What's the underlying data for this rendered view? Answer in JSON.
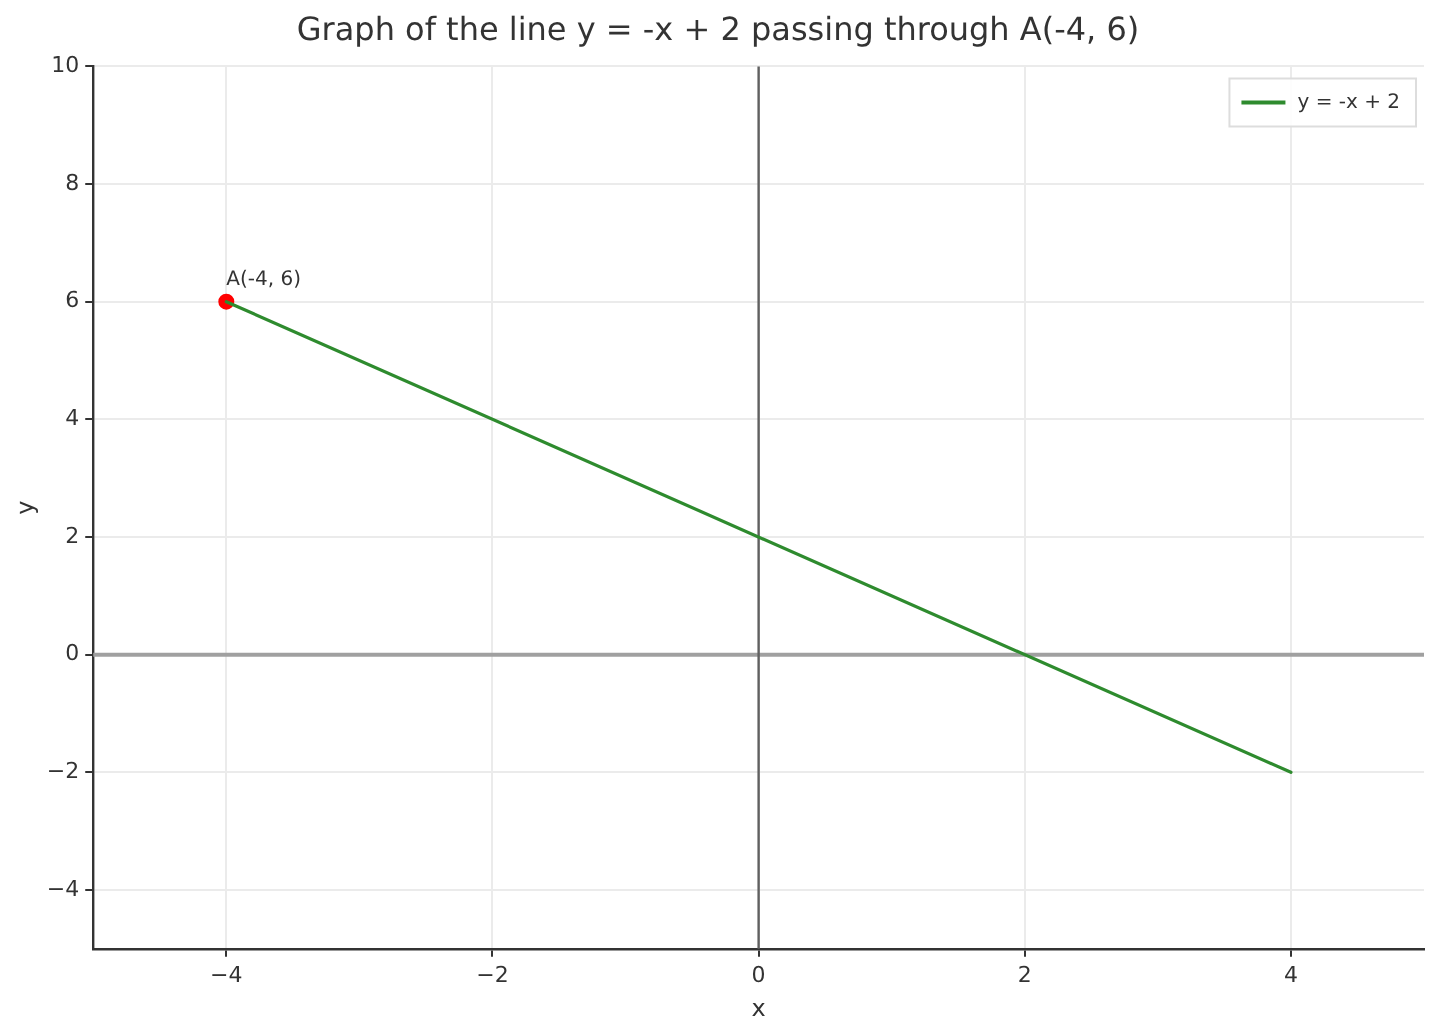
{
  "chart_data": {
    "type": "line",
    "title": "Graph of the line y = -x + 2 passing through A(-4, 6)",
    "xlabel": "x",
    "ylabel": "y",
    "series": [
      {
        "name": "y = -x + 2",
        "marker": "none",
        "color": "#2e8b2e",
        "values": [
          6,
          -2
        ]
      },
      {
        "type": "scatter",
        "marker": "circle",
        "color": "#ff0000",
        "x": [
          -4
        ],
        "values": [
          6
        ]
      }
    ],
    "x": [
      -4,
      4
    ],
    "xlim": [
      -5,
      5
    ],
    "xticks": [
      {
        "value": -4,
        "label": "−4"
      },
      {
        "value": -2,
        "label": "−2"
      },
      0,
      2,
      4
    ],
    "ylim": [
      -5,
      10
    ],
    "yticks": [
      {
        "value": -4,
        "label": "−4"
      },
      {
        "value": -2,
        "label": "−2"
      },
      0,
      2,
      4,
      6,
      8,
      10
    ],
    "ref_lines": [
      {
        "axis": "y",
        "value": 0,
        "color": "#a0a0a0"
      },
      {
        "axis": "x",
        "value": 0,
        "color": "#606060"
      }
    ],
    "annotations": [
      {
        "text": "A(-4, 6)",
        "x": -4,
        "y": 6
      }
    ],
    "grid": true,
    "legend": "top right",
    "line_style": "solid"
  }
}
